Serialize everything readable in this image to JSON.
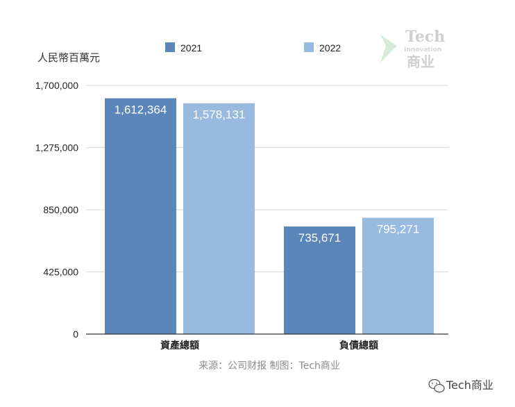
{
  "unit_label": "人民幣百萬元",
  "source": "来源：公司财报 制图：Tech商业",
  "watermark": {
    "line1": "Tech",
    "line2": "Innovation",
    "line3": "商业"
  },
  "footer": {
    "brand": "Tech商业",
    "icon": "wechat-icon"
  },
  "colors": {
    "2021": "#5b86b9",
    "2022": "#97bade",
    "grid": "#d9d9d9",
    "axis": "#333333"
  },
  "chart_data": {
    "type": "bar",
    "categories": [
      "資產總額",
      "負債總額"
    ],
    "series": [
      {
        "name": "2021",
        "values": [
          1612364,
          735671
        ],
        "labels": [
          "1,612,364",
          "735,671"
        ]
      },
      {
        "name": "2022",
        "values": [
          1578131,
          795271
        ],
        "labels": [
          "1,578,131",
          "795,271"
        ]
      }
    ],
    "yticks": [
      "1,700,000",
      "1,275,000",
      "850,000",
      "425,000",
      "0"
    ],
    "ytick_values": [
      1700000,
      1275000,
      850000,
      425000,
      0
    ],
    "ylim": [
      0,
      1700000
    ],
    "grid": true,
    "legend": "top"
  }
}
